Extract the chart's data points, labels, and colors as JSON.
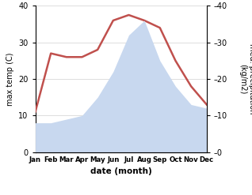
{
  "months": [
    "Jan",
    "Feb",
    "Mar",
    "Apr",
    "May",
    "Jun",
    "Jul",
    "Aug",
    "Sep",
    "Oct",
    "Nov",
    "Dec"
  ],
  "temperature": [
    11,
    27,
    26,
    26,
    28,
    36,
    37.5,
    36,
    34,
    25,
    18,
    13
  ],
  "precipitation": [
    8,
    8,
    9,
    10,
    15,
    22,
    32,
    36,
    25,
    18,
    13,
    12
  ],
  "temp_color": "#c0504d",
  "precip_color": "#c8d8ef",
  "ylim": [
    0,
    40
  ],
  "yticks": [
    0,
    10,
    20,
    30,
    40
  ],
  "ylabel_left": "max temp (C)",
  "ylabel_right": "med. precipitation\n(kg/m2)",
  "xlabel": "date (month)",
  "background_color": "#ffffff",
  "figsize": [
    3.18,
    2.47
  ],
  "dpi": 100
}
